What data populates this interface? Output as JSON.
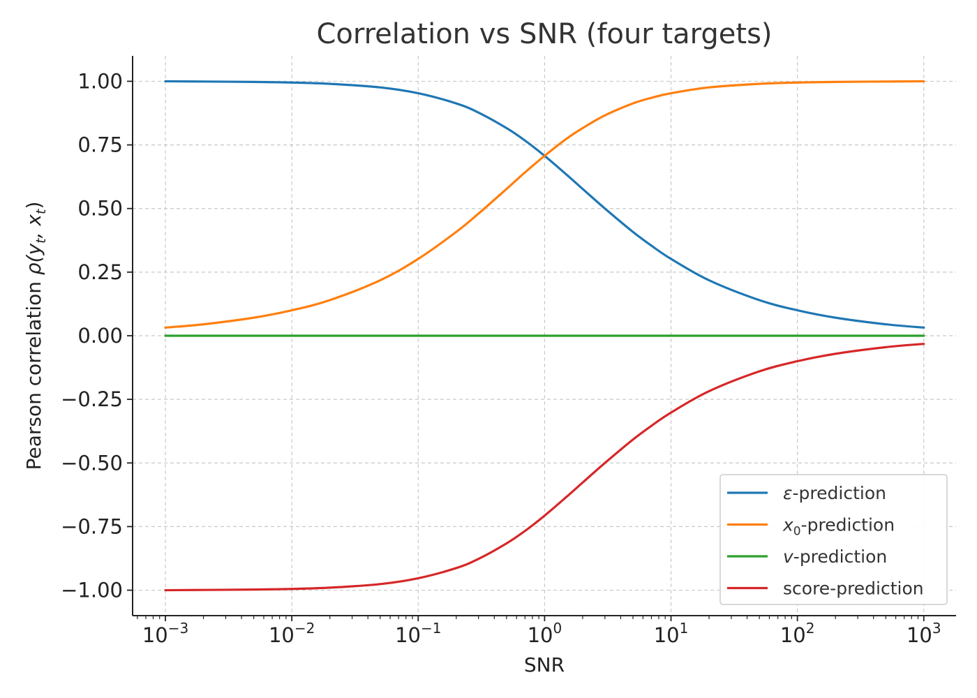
{
  "chart_data": {
    "type": "line",
    "title": "Correlation vs SNR (four targets)",
    "xlabel": "SNR",
    "ylabel": "Pearson correlation ρ(y_t, x_t)",
    "ylabel_parts": {
      "prefix": "Pearson correlation ",
      "rho": "ρ(",
      "y": "y",
      "t1": "t",
      "comma": ", ",
      "x": "x",
      "t2": "t",
      "close": ")"
    },
    "x_scale": "log",
    "xlim": [
      0.00055,
      1800
    ],
    "ylim": [
      -1.1,
      1.1
    ],
    "x_ticks": [
      {
        "base": "10",
        "exp": "−3",
        "value": 0.001
      },
      {
        "base": "10",
        "exp": "−2",
        "value": 0.01
      },
      {
        "base": "10",
        "exp": "−1",
        "value": 0.1
      },
      {
        "base": "10",
        "exp": "0",
        "value": 1
      },
      {
        "base": "10",
        "exp": "1",
        "value": 10
      },
      {
        "base": "10",
        "exp": "2",
        "value": 100
      },
      {
        "base": "10",
        "exp": "3",
        "value": 1000
      }
    ],
    "y_ticks": [
      {
        "label": "1.00",
        "value": 1.0
      },
      {
        "label": "0.75",
        "value": 0.75
      },
      {
        "label": "0.50",
        "value": 0.5
      },
      {
        "label": "0.25",
        "value": 0.25
      },
      {
        "label": "0.00",
        "value": 0.0
      },
      {
        "label": "−0.25",
        "value": -0.25
      },
      {
        "label": "−0.50",
        "value": -0.5
      },
      {
        "label": "−0.75",
        "value": -0.75
      },
      {
        "label": "−1.00",
        "value": -1.0
      }
    ],
    "grid": true,
    "legend_position": "lower-right",
    "x": [
      0.001,
      0.002,
      0.005,
      0.01,
      0.02,
      0.05,
      0.1,
      0.2,
      0.3,
      0.5,
      0.7,
      1,
      1.5,
      2,
      3,
      5,
      7,
      10,
      20,
      50,
      100,
      200,
      500,
      1000
    ],
    "series": [
      {
        "name": "ε-prediction",
        "legend": {
          "sym": "ε",
          "rest": "-prediction"
        },
        "color": "#1f77b4",
        "values": [
          1.0,
          0.999,
          0.9975,
          0.995,
          0.99,
          0.976,
          0.953,
          0.913,
          0.877,
          0.816,
          0.767,
          0.707,
          0.632,
          0.577,
          0.5,
          0.408,
          0.354,
          0.302,
          0.218,
          0.14,
          0.1,
          0.071,
          0.045,
          0.032
        ]
      },
      {
        "name": "x0-prediction",
        "legend": {
          "sym": "x",
          "sub": "0",
          "rest": "-prediction"
        },
        "color": "#ff7f0e",
        "values": [
          0.032,
          0.045,
          0.071,
          0.1,
          0.14,
          0.218,
          0.302,
          0.408,
          0.48,
          0.577,
          0.642,
          0.707,
          0.775,
          0.816,
          0.866,
          0.913,
          0.935,
          0.953,
          0.976,
          0.99,
          0.995,
          0.9975,
          0.999,
          1.0
        ]
      },
      {
        "name": "v-prediction",
        "legend": {
          "sym": "v",
          "rest": "-prediction"
        },
        "color": "#2ca02c",
        "values": [
          0,
          0,
          0,
          0,
          0,
          0,
          0,
          0,
          0,
          0,
          0,
          0,
          0,
          0,
          0,
          0,
          0,
          0,
          0,
          0,
          0,
          0,
          0,
          0
        ]
      },
      {
        "name": "score-prediction",
        "legend": {
          "sym": "",
          "rest": "score-prediction"
        },
        "color": "#d62728",
        "values": [
          -1.0,
          -0.999,
          -0.9975,
          -0.995,
          -0.99,
          -0.976,
          -0.953,
          -0.913,
          -0.877,
          -0.816,
          -0.767,
          -0.707,
          -0.632,
          -0.577,
          -0.5,
          -0.408,
          -0.354,
          -0.302,
          -0.218,
          -0.14,
          -0.1,
          -0.071,
          -0.045,
          -0.032
        ]
      }
    ]
  }
}
